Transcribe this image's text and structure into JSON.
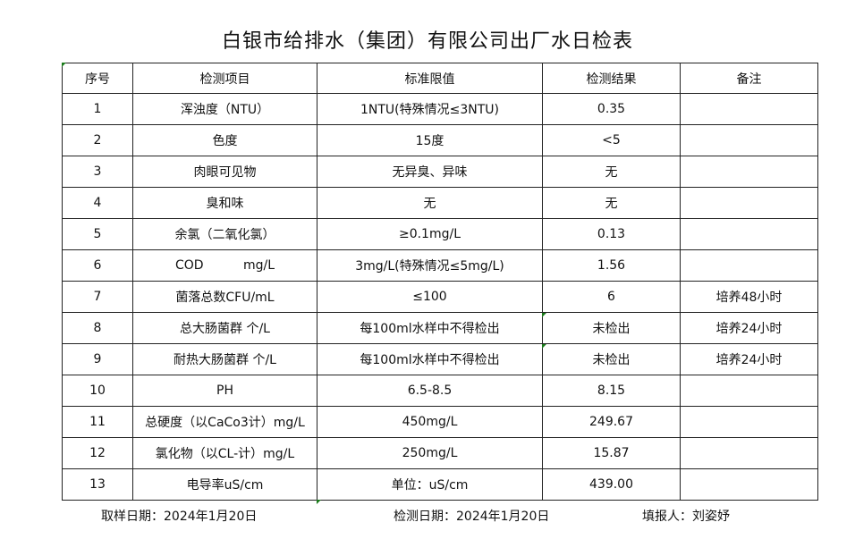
{
  "title": "白银市给排水（集团）有限公司出厂水日检表",
  "headers": [
    "序号",
    "检测项目",
    "标准限值",
    "检测结果",
    "备注"
  ],
  "rows": [
    [
      "1",
      "浑浊度（NTU）",
      "1NTU(特殊情况≤3NTU)",
      "0.35",
      ""
    ],
    [
      "2",
      "色度",
      "15度",
      "<5",
      ""
    ],
    [
      "3",
      "肉眼可见物",
      "无异臭、异味",
      "无",
      ""
    ],
    [
      "4",
      "臭和味",
      "无",
      "无",
      ""
    ],
    [
      "5",
      "余氯（二氧化氯）",
      "≥0.1mg/L",
      "0.13",
      ""
    ],
    [
      "6",
      "COD          mg/L",
      "3mg/L(特殊情况≤5mg/L)",
      "1.56",
      ""
    ],
    [
      "7",
      "菌落总数CFU/mL",
      "≤100",
      "6",
      "培养48小时"
    ],
    [
      "8",
      "总大肠菌群 个/L",
      "每100ml水样中不得检出",
      "未检出",
      "培养24小时"
    ],
    [
      "9",
      "耐热大肠菌群 个/L",
      "每100ml水样中不得检出",
      "未检出",
      "培养24小时"
    ],
    [
      "10",
      "PH",
      "6.5-8.5",
      "8.15",
      ""
    ],
    [
      "11",
      "总硬度（以CaCo3计）mg/L",
      "450mg/L",
      "249.67",
      ""
    ],
    [
      "12",
      "氯化物（以CL-计）mg/L",
      "250mg/L",
      "15.87",
      ""
    ],
    [
      "13",
      "电导率uS/cm",
      "单位：uS/cm",
      "439.00",
      ""
    ]
  ],
  "footer": {
    "sample_date": "取样日期：2024年1月20日",
    "test_date": "检测日期：2024年1月20日",
    "reporter": "填报人：刘姿妤"
  }
}
